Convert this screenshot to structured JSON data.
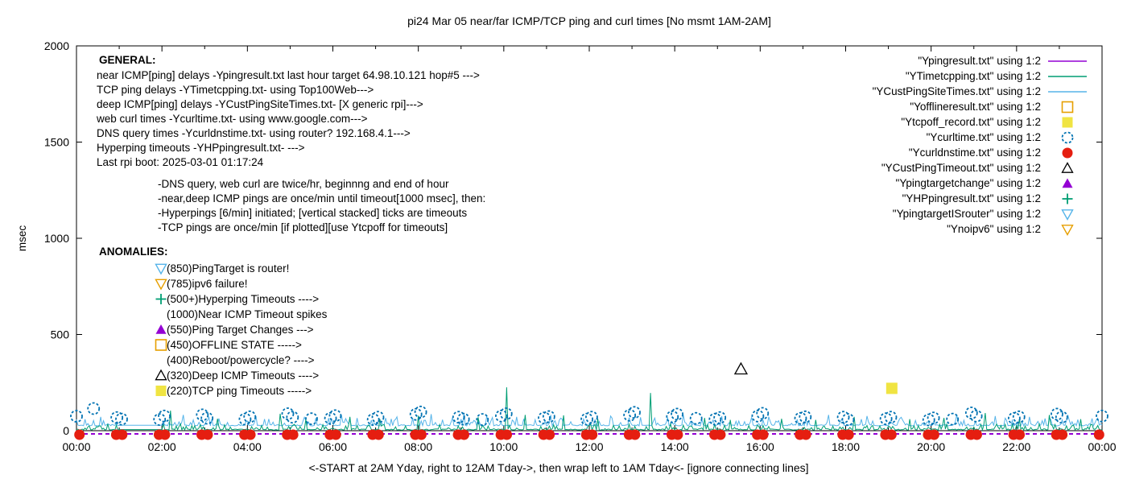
{
  "title": "pi24 Mar 05  near/far ICMP/TCP ping and curl times [No msmt 1AM-2AM]",
  "axes": {
    "ylabel": "msec",
    "yticks": [
      0,
      500,
      1000,
      1500,
      2000
    ],
    "ylim": [
      0,
      2000
    ],
    "xtick_labels": [
      "00:00",
      "02:00",
      "04:00",
      "06:00",
      "08:00",
      "10:00",
      "12:00",
      "14:00",
      "16:00",
      "18:00",
      "20:00",
      "22:00",
      "00:00"
    ],
    "xlabel": "<-START at 2AM Yday, right to 12AM Tday->, then wrap left to 1AM Tday<- [ignore connecting lines]"
  },
  "legend": [
    {
      "label": "\"Ypingresult.txt\" using 1:2",
      "marker": "line",
      "color": "#9400d3"
    },
    {
      "label": "\"YTimetcpping.txt\" using 1:2",
      "marker": "line",
      "color": "#009e73"
    },
    {
      "label": "\"YCustPingSiteTimes.txt\" using 1:2",
      "marker": "line",
      "color": "#56b4e9"
    },
    {
      "label": "\"Yofflineresult.txt\" using 1:2",
      "marker": "square-open",
      "color": "#e69f00"
    },
    {
      "label": "\"Ytcpoff_record.txt\" using 1:2",
      "marker": "square-filled",
      "color": "#f0e442"
    },
    {
      "label": "\"Ycurltime.txt\" using 1:2",
      "marker": "circle-open",
      "color": "#0072b2"
    },
    {
      "label": "\"Ycurldnstime.txt\" using 1:2",
      "marker": "circle-filled",
      "color": "#e51e10"
    },
    {
      "label": "\"YCustPingTimeout.txt\" using 1:2",
      "marker": "triangle-open",
      "color": "#000000"
    },
    {
      "label": "\"Ypingtargetchange\" using 1:2",
      "marker": "triangle-filled",
      "color": "#9400d3"
    },
    {
      "label": "\"YHPpingresult.txt\" using 1:2",
      "marker": "plus",
      "color": "#009e73"
    },
    {
      "label": "\"YpingtargetISrouter\" using 1:2",
      "marker": "triangle-down-open",
      "color": "#56b4e9"
    },
    {
      "label": "\"Ynoipv6\" using 1:2",
      "marker": "triangle-down-open",
      "color": "#e69f00"
    }
  ],
  "general": {
    "heading": "GENERAL:",
    "lines": [
      "near ICMP[ping] delays -Ypingresult.txt last hour target 64.98.10.121 hop#5 --->",
      "TCP ping delays -YTimetcpping.txt- using Top100Web--->",
      "deep ICMP[ping] delays -YCustPingSiteTimes.txt- [X generic rpi]--->",
      "web curl times -Ycurltime.txt- using www.google.com--->",
      "DNS query times -Ycurldnstime.txt- using router? 192.168.4.1--->",
      "Hyperping timeouts -YHPpingresult.txt- --->",
      "Last rpi boot: 2025-03-01 01:17:24"
    ],
    "indented_lines": [
      "-DNS query, web curl are twice/hr, beginnng and end of hour",
      "-near,deep ICMP pings are once/min until timeout[1000 msec], then:",
      " -Hyperpings [6/min] initiated; [vertical stacked] ticks are timeouts",
      "-TCP pings are once/min [if plotted][use Ytcpoff for timeouts]"
    ]
  },
  "anomalies": {
    "heading": "ANOMALIES:",
    "items": [
      {
        "marker": "triangle-down-open",
        "color": "#56b4e9",
        "text": "(850)PingTarget is router!"
      },
      {
        "marker": "triangle-down-open",
        "color": "#e69f00",
        "text": "(785)ipv6 failure!"
      },
      {
        "marker": "plus",
        "color": "#009e73",
        "text": "(500+)Hyperping Timeouts ---->"
      },
      {
        "marker": "none",
        "color": "",
        "text": "(1000)Near ICMP Timeout spikes"
      },
      {
        "marker": "triangle-filled",
        "color": "#9400d3",
        "text": "(550)Ping Target Changes --->"
      },
      {
        "marker": "square-open",
        "color": "#e69f00",
        "text": "(450)OFFLINE STATE ----->"
      },
      {
        "marker": "none",
        "color": "",
        "text": "(400)Reboot/powercycle? ---->"
      },
      {
        "marker": "triangle-open",
        "color": "#000000",
        "text": "(320)Deep ICMP Timeouts ---->"
      },
      {
        "marker": "square-filled",
        "color": "#f0e442",
        "text": "(220)TCP ping Timeouts ----->"
      }
    ]
  },
  "chart_data": {
    "type": "line",
    "x_unit": "hours 0-24 (wrapped day)",
    "xlim": [
      0,
      24
    ],
    "ylim": [
      0,
      2000
    ],
    "grid": false,
    "legend_position": "top-right",
    "no_measurement_window_hours": [
      1,
      2
    ],
    "series": [
      {
        "name": "Ypingresult.txt",
        "role": "near ICMP ping delays",
        "color": "#9400d3",
        "style": "flat-line-dashed",
        "baseline_msec": 0
      },
      {
        "name": "YTimetcpping.txt",
        "role": "TCP ping delays",
        "color": "#009e73",
        "style": "noisy-line",
        "seed": 42,
        "baseline_msec": 6,
        "noise_max_msec": 28,
        "spikes": [
          [
            2.2,
            104
          ],
          [
            3.3,
            62
          ],
          [
            4.75,
            88
          ],
          [
            5.35,
            58
          ],
          [
            6.4,
            72
          ],
          [
            7.1,
            60
          ],
          [
            8.0,
            78
          ],
          [
            9.4,
            70
          ],
          [
            10.05,
            225
          ],
          [
            10.5,
            82
          ],
          [
            11.4,
            80
          ],
          [
            12.2,
            62
          ],
          [
            13.43,
            196
          ],
          [
            14.7,
            66
          ],
          [
            15.3,
            56
          ],
          [
            16.5,
            62
          ],
          [
            17.3,
            56
          ],
          [
            18.2,
            72
          ],
          [
            19.5,
            60
          ],
          [
            20.3,
            66
          ],
          [
            21.25,
            92
          ],
          [
            22.05,
            62
          ],
          [
            22.75,
            82
          ],
          [
            23.5,
            60
          ]
        ]
      },
      {
        "name": "YCustPingSiteTimes.txt",
        "role": "deep ICMP ping delays",
        "color": "#56b4e9",
        "style": "noisy-line",
        "seed": 1337,
        "baseline_msec": 28,
        "noise_max_msec": 40,
        "spikes": [
          [
            0.55,
            72
          ],
          [
            2.5,
            82
          ],
          [
            3.1,
            70
          ],
          [
            4.2,
            76
          ],
          [
            5.6,
            66
          ],
          [
            6.2,
            82
          ],
          [
            7.5,
            72
          ],
          [
            8.3,
            86
          ],
          [
            9.05,
            90
          ],
          [
            9.6,
            76
          ],
          [
            10.3,
            72
          ],
          [
            11.1,
            82
          ],
          [
            12.5,
            76
          ],
          [
            13.2,
            70
          ],
          [
            14.2,
            82
          ],
          [
            15.1,
            76
          ],
          [
            16.2,
            72
          ],
          [
            17.6,
            82
          ],
          [
            18.5,
            76
          ],
          [
            19.3,
            70
          ],
          [
            20.6,
            82
          ],
          [
            21.5,
            76
          ],
          [
            22.3,
            72
          ],
          [
            23.2,
            82
          ]
        ]
      },
      {
        "name": "Ycurltime.txt",
        "role": "web curl times (twice/hr)",
        "color": "#0072b2",
        "style": "points",
        "marker": "circle-open",
        "pairs_at_hours": [
          [
            0,
            75
          ],
          [
            1,
            68,
            60
          ],
          [
            2,
            58,
            76
          ],
          [
            3,
            82,
            65
          ],
          [
            4,
            60,
            72
          ],
          [
            5,
            88,
            70
          ],
          [
            6,
            64,
            78
          ],
          [
            7,
            58,
            70
          ],
          [
            8,
            85,
            97
          ],
          [
            9,
            70,
            60
          ],
          [
            10,
            76,
            88
          ],
          [
            11,
            66,
            73
          ],
          [
            12,
            60,
            70
          ],
          [
            13,
            80,
            95
          ],
          [
            14,
            72,
            86
          ],
          [
            15,
            60,
            68
          ],
          [
            16,
            76,
            90
          ],
          [
            17,
            64,
            72
          ],
          [
            18,
            70,
            58
          ],
          [
            19,
            62,
            70
          ],
          [
            20,
            56,
            66
          ],
          [
            21,
            92,
            76
          ],
          [
            22,
            64,
            72
          ],
          [
            23,
            86,
            70
          ],
          [
            24,
            76
          ]
        ],
        "extra_points": [
          [
            0.4,
            115
          ],
          [
            5.5,
            62
          ],
          [
            9.5,
            58
          ],
          [
            14.5,
            64
          ],
          [
            20.5,
            60
          ]
        ]
      },
      {
        "name": "Ycurldnstime.txt",
        "role": "DNS query times (twice/hr)",
        "color": "#e51e10",
        "style": "points",
        "marker": "circle-filled",
        "value_msec": 0,
        "pattern": "pairs-at-each-hour-0-to-24"
      },
      {
        "name": "YCustPingTimeout.txt",
        "role": "deep ICMP timeouts",
        "color": "#000000",
        "style": "points",
        "marker": "triangle-open",
        "points": [
          [
            15.55,
            320
          ]
        ]
      },
      {
        "name": "Ytcpoff_record.txt",
        "role": "TCP ping timeouts",
        "color": "#f0e442",
        "style": "points",
        "marker": "square-filled",
        "points": [
          [
            19.08,
            220
          ]
        ]
      }
    ]
  }
}
